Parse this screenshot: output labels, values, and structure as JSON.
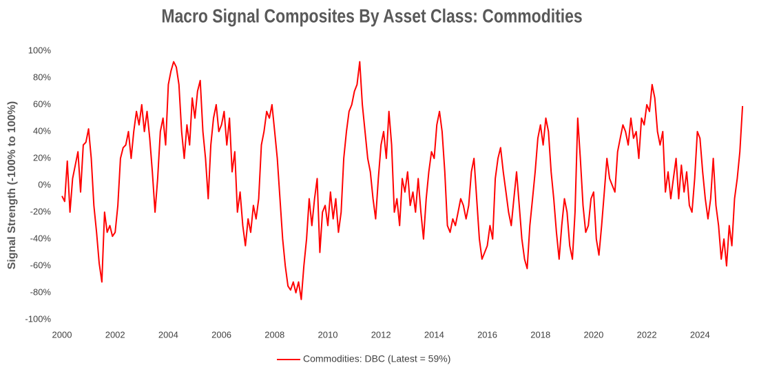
{
  "chart_data": {
    "type": "line",
    "title": "Macro Signal Composites By Asset Class: Commodities",
    "y_label": "Signal Strength (-100% to 100%)",
    "xlim": [
      2000,
      2025.65
    ],
    "xticks": [
      2000,
      2002,
      2004,
      2006,
      2008,
      2010,
      2012,
      2014,
      2016,
      2018,
      2020,
      2022,
      2024
    ],
    "ylim": [
      -100,
      100
    ],
    "yticks": [
      {
        "value": -100,
        "label": "-100%"
      },
      {
        "value": -80,
        "label": "-80%"
      },
      {
        "value": -60,
        "label": "-60%"
      },
      {
        "value": -40,
        "label": "-40%"
      },
      {
        "value": -20,
        "label": "-20%"
      },
      {
        "value": 0,
        "label": "0%"
      },
      {
        "value": 20,
        "label": "20%"
      },
      {
        "value": 40,
        "label": "40%"
      },
      {
        "value": 60,
        "label": "60%"
      },
      {
        "value": 80,
        "label": "80%"
      },
      {
        "value": 100,
        "label": "100%"
      }
    ],
    "grid": false,
    "legend": "bottom",
    "x": [
      2000.0,
      2000.1,
      2000.2,
      2000.3,
      2000.4,
      2000.5,
      2000.6,
      2000.7,
      2000.8,
      2000.9,
      2001.0,
      2001.1,
      2001.2,
      2001.3,
      2001.4,
      2001.5,
      2001.6,
      2001.7,
      2001.8,
      2001.9,
      2002.0,
      2002.1,
      2002.2,
      2002.3,
      2002.4,
      2002.5,
      2002.6,
      2002.7,
      2002.8,
      2002.9,
      2003.0,
      2003.1,
      2003.2,
      2003.3,
      2003.4,
      2003.5,
      2003.6,
      2003.7,
      2003.8,
      2003.9,
      2004.0,
      2004.1,
      2004.2,
      2004.3,
      2004.4,
      2004.5,
      2004.6,
      2004.7,
      2004.8,
      2004.9,
      2005.0,
      2005.1,
      2005.2,
      2005.3,
      2005.4,
      2005.5,
      2005.6,
      2005.7,
      2005.8,
      2005.9,
      2006.0,
      2006.1,
      2006.2,
      2006.3,
      2006.4,
      2006.5,
      2006.6,
      2006.7,
      2006.8,
      2006.9,
      2007.0,
      2007.1,
      2007.2,
      2007.3,
      2007.4,
      2007.5,
      2007.6,
      2007.7,
      2007.8,
      2007.9,
      2008.0,
      2008.1,
      2008.2,
      2008.3,
      2008.4,
      2008.5,
      2008.6,
      2008.7,
      2008.8,
      2008.9,
      2009.0,
      2009.1,
      2009.2,
      2009.3,
      2009.4,
      2009.5,
      2009.6,
      2009.7,
      2009.8,
      2009.9,
      2010.0,
      2010.1,
      2010.2,
      2010.3,
      2010.4,
      2010.5,
      2010.6,
      2010.7,
      2010.8,
      2010.9,
      2011.0,
      2011.1,
      2011.2,
      2011.3,
      2011.4,
      2011.5,
      2011.6,
      2011.7,
      2011.8,
      2011.9,
      2012.0,
      2012.1,
      2012.2,
      2012.3,
      2012.4,
      2012.5,
      2012.6,
      2012.7,
      2012.8,
      2012.9,
      2013.0,
      2013.1,
      2013.2,
      2013.3,
      2013.4,
      2013.5,
      2013.6,
      2013.7,
      2013.8,
      2013.9,
      2014.0,
      2014.1,
      2014.2,
      2014.3,
      2014.4,
      2014.5,
      2014.6,
      2014.7,
      2014.8,
      2014.9,
      2015.0,
      2015.1,
      2015.2,
      2015.3,
      2015.4,
      2015.5,
      2015.6,
      2015.7,
      2015.8,
      2015.9,
      2016.0,
      2016.1,
      2016.2,
      2016.3,
      2016.4,
      2016.5,
      2016.6,
      2016.7,
      2016.8,
      2016.9,
      2017.0,
      2017.1,
      2017.2,
      2017.3,
      2017.4,
      2017.5,
      2017.6,
      2017.7,
      2017.8,
      2017.9,
      2018.0,
      2018.1,
      2018.2,
      2018.3,
      2018.4,
      2018.5,
      2018.6,
      2018.7,
      2018.8,
      2018.9,
      2019.0,
      2019.1,
      2019.2,
      2019.3,
      2019.4,
      2019.5,
      2019.6,
      2019.7,
      2019.8,
      2019.9,
      2020.0,
      2020.1,
      2020.2,
      2020.3,
      2020.4,
      2020.5,
      2020.6,
      2020.7,
      2020.8,
      2020.9,
      2021.0,
      2021.1,
      2021.2,
      2021.3,
      2021.4,
      2021.5,
      2021.6,
      2021.7,
      2021.8,
      2021.9,
      2022.0,
      2022.1,
      2022.2,
      2022.3,
      2022.4,
      2022.5,
      2022.6,
      2022.7,
      2022.8,
      2022.9,
      2023.0,
      2023.1,
      2023.2,
      2023.3,
      2023.4,
      2023.5,
      2023.6,
      2023.7,
      2023.8,
      2023.9,
      2024.0,
      2024.1,
      2024.2,
      2024.3,
      2024.4,
      2024.5,
      2024.6,
      2024.7,
      2024.8,
      2024.9,
      2025.0,
      2025.1,
      2025.2,
      2025.3,
      2025.4,
      2025.5,
      2025.6
    ],
    "series": [
      {
        "name": "Commodities: DBC (Latest = 59%)",
        "color": "#ff0000",
        "values": [
          -8,
          -12,
          18,
          -20,
          5,
          15,
          25,
          -5,
          30,
          32,
          42,
          20,
          -15,
          -35,
          -58,
          -72,
          -20,
          -35,
          -30,
          -38,
          -35,
          -15,
          20,
          28,
          30,
          40,
          20,
          40,
          55,
          45,
          60,
          40,
          55,
          35,
          10,
          -20,
          5,
          40,
          50,
          30,
          75,
          85,
          92,
          88,
          75,
          40,
          20,
          45,
          30,
          65,
          50,
          70,
          78,
          40,
          20,
          -10,
          30,
          50,
          60,
          40,
          45,
          55,
          30,
          50,
          10,
          25,
          -20,
          -5,
          -30,
          -45,
          -25,
          -35,
          -15,
          -25,
          -10,
          30,
          40,
          55,
          50,
          60,
          40,
          20,
          -10,
          -40,
          -60,
          -75,
          -78,
          -72,
          -80,
          -72,
          -85,
          -60,
          -40,
          -10,
          -30,
          -10,
          5,
          -50,
          -20,
          -15,
          -30,
          -5,
          -25,
          -10,
          -35,
          -20,
          20,
          40,
          55,
          60,
          70,
          75,
          92,
          60,
          40,
          20,
          10,
          -10,
          -25,
          5,
          30,
          40,
          20,
          55,
          30,
          -20,
          -10,
          -30,
          5,
          -5,
          10,
          -15,
          -5,
          -20,
          5,
          -20,
          -40,
          -10,
          10,
          25,
          20,
          45,
          55,
          40,
          10,
          -30,
          -35,
          -25,
          -30,
          -20,
          -10,
          -15,
          -25,
          -15,
          10,
          20,
          -10,
          -40,
          -55,
          -50,
          -45,
          -30,
          -40,
          5,
          20,
          28,
          10,
          -5,
          -20,
          -30,
          -10,
          10,
          -15,
          -40,
          -55,
          -62,
          -30,
          -10,
          10,
          35,
          45,
          30,
          50,
          40,
          10,
          -10,
          -35,
          -55,
          -30,
          -10,
          -20,
          -45,
          -55,
          -20,
          50,
          20,
          -15,
          -35,
          -30,
          -10,
          -5,
          -40,
          -52,
          -30,
          -5,
          20,
          5,
          0,
          -5,
          25,
          35,
          45,
          40,
          30,
          50,
          35,
          40,
          20,
          50,
          45,
          60,
          55,
          75,
          65,
          40,
          30,
          40,
          -5,
          10,
          -10,
          5,
          20,
          -10,
          15,
          -5,
          10,
          -15,
          -20,
          5,
          40,
          35,
          10,
          -10,
          -25,
          -10,
          20,
          -15,
          -30,
          -55,
          -40,
          -60,
          -30,
          -45,
          -10,
          5,
          25,
          59
        ]
      }
    ]
  }
}
